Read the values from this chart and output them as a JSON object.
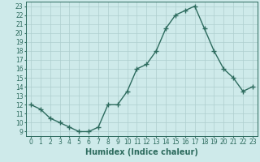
{
  "x_values": [
    0,
    1,
    2,
    3,
    4,
    5,
    6,
    7,
    8,
    9,
    10,
    11,
    12,
    13,
    14,
    15,
    16,
    17,
    18,
    19,
    20,
    21,
    22,
    23
  ],
  "y_values": [
    12,
    11.5,
    10.5,
    10,
    9.5,
    9,
    9,
    9.5,
    12,
    12,
    13.5,
    16,
    16.5,
    18,
    20.5,
    22,
    22.5,
    23,
    20.5,
    18,
    16,
    15,
    13.5,
    14
  ],
  "line_color": "#2d6b5e",
  "marker": "+",
  "marker_size": 4,
  "marker_lw": 1.0,
  "bg_color": "#ceeaea",
  "grid_color": "#aecece",
  "xlabel": "Humidex (Indice chaleur)",
  "xlabel_fontsize": 7,
  "xlim": [
    -0.5,
    23.5
  ],
  "ylim": [
    8.5,
    23.5
  ],
  "yticks": [
    9,
    10,
    11,
    12,
    13,
    14,
    15,
    16,
    17,
    18,
    19,
    20,
    21,
    22,
    23
  ],
  "xticks": [
    0,
    1,
    2,
    3,
    4,
    5,
    6,
    7,
    8,
    9,
    10,
    11,
    12,
    13,
    14,
    15,
    16,
    17,
    18,
    19,
    20,
    21,
    22,
    23
  ],
  "tick_fontsize": 5.5,
  "line_width": 1.0
}
